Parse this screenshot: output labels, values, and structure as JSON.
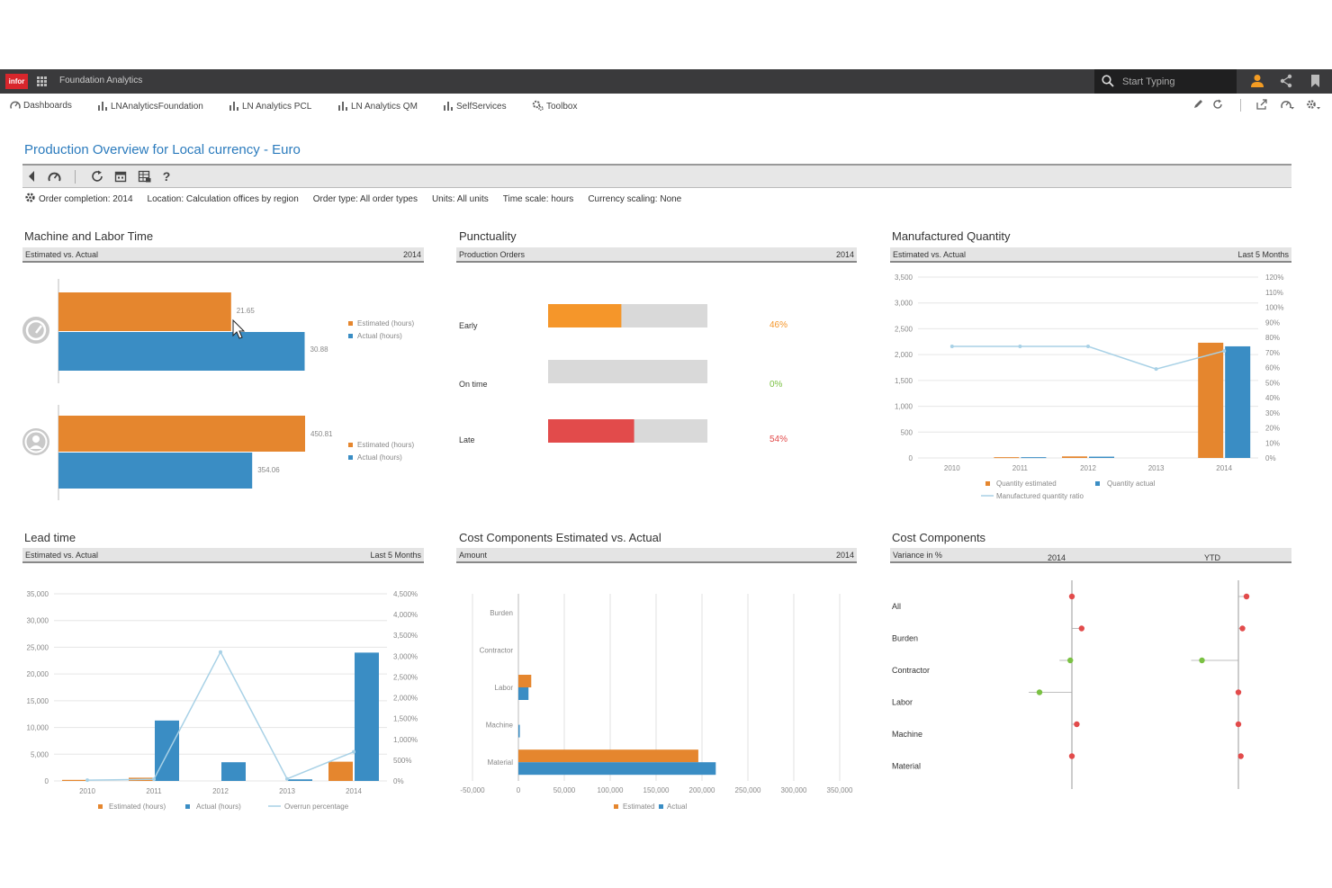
{
  "app": {
    "logo": "infor",
    "title": "Foundation Analytics",
    "search_placeholder": "Start Typing"
  },
  "nav": {
    "items": [
      "Dashboards",
      "LNAnalyticsFoundation",
      "LN Analytics PCL",
      "LN Analytics QM",
      "SelfServices",
      "Toolbox"
    ]
  },
  "page": {
    "title": "Production Overview for Local currency - Euro"
  },
  "filters": [
    "Order completion: 2014",
    "Location: Calculation offices by region",
    "Order type: All order types",
    "Units: All units",
    "Time scale: hours",
    "Currency scaling: None"
  ],
  "colors": {
    "orange": "#e5862e",
    "blue": "#3a8dc4",
    "red": "#e24b4b",
    "green": "#7ac143",
    "ratio": "#a8d1e6",
    "gray": "#d9d9d9",
    "accent": "#2b7bbd"
  },
  "panels": {
    "machine_labor": {
      "title": "Machine and Labor Time",
      "subtitle": "Estimated vs. Actual",
      "period": "2014"
    },
    "punctuality": {
      "title": "Punctuality",
      "subtitle": "Production Orders",
      "period": "2014"
    },
    "manufactured": {
      "title": "Manufactured Quantity",
      "subtitle": "Estimated vs. Actual",
      "period": "Last 5 Months"
    },
    "lead_time": {
      "title": "Lead time",
      "subtitle": "Estimated vs. Actual",
      "period": "Last 5 Months"
    },
    "cost_est_act": {
      "title": "Cost Components Estimated vs. Actual",
      "subtitle": "Amount",
      "period": "2014"
    },
    "cost_variance": {
      "title": "Cost Components",
      "subtitle": "Variance in %",
      "col1": "2014",
      "col2": "YTD"
    }
  },
  "chart_data": [
    {
      "id": "machine_labor",
      "type": "bar",
      "groups": [
        {
          "icon": "machine-gauge-icon",
          "series": [
            {
              "name": "Estimated (hours)",
              "value": 21.65,
              "label": "21.65"
            },
            {
              "name": "Actual (hours)",
              "value": 30.88,
              "label": "30.88"
            }
          ]
        },
        {
          "icon": "person-icon",
          "series": [
            {
              "name": "Estimated (hours)",
              "value": 450.81,
              "label": "450.81"
            },
            {
              "name": "Actual (hours)",
              "value": 354.06,
              "label": "354.06"
            }
          ]
        }
      ]
    },
    {
      "id": "punctuality",
      "type": "bar",
      "categories": [
        "Early",
        "On time",
        "Late"
      ],
      "values": [
        46,
        0,
        54
      ],
      "labels": [
        "46%",
        "0%",
        "54%"
      ],
      "colors": [
        "#f5962a",
        "#7ac143",
        "#e24b4b"
      ]
    },
    {
      "id": "manufactured",
      "type": "bar",
      "categories": [
        "2010",
        "2011",
        "2012",
        "2013",
        "2014"
      ],
      "series": [
        {
          "name": "Quantity estimated",
          "values": [
            0,
            15,
            30,
            0,
            2230
          ]
        },
        {
          "name": "Quantity actual",
          "values": [
            0,
            15,
            25,
            0,
            2160
          ]
        }
      ],
      "line": {
        "name": "Manufactured quantity ratio",
        "values": [
          74,
          74,
          74,
          59,
          71
        ]
      },
      "ylim": [
        0,
        3500
      ],
      "yticks": [
        "0",
        "500",
        "1,000",
        "1,500",
        "2,000",
        "2,500",
        "3,000",
        "3,500"
      ],
      "y2lim": [
        0,
        120
      ],
      "y2ticks": [
        "0%",
        "10%",
        "20%",
        "30%",
        "40%",
        "50%",
        "60%",
        "70%",
        "80%",
        "90%",
        "100%",
        "110%",
        "120%"
      ]
    },
    {
      "id": "lead_time",
      "type": "bar",
      "categories": [
        "2010",
        "2011",
        "2012",
        "2013",
        "2014"
      ],
      "series": [
        {
          "name": "Estimated (hours)",
          "values": [
            200,
            600,
            0,
            0,
            3600
          ]
        },
        {
          "name": "Actual (hours)",
          "values": [
            0,
            11300,
            3500,
            300,
            24000
          ]
        }
      ],
      "line": {
        "name": "Overrun percentage",
        "values": [
          20,
          40,
          3100,
          50,
          700
        ]
      },
      "ylim": [
        0,
        35000
      ],
      "yticks": [
        "0",
        "5,000",
        "10,000",
        "15,000",
        "20,000",
        "25,000",
        "30,000",
        "35,000"
      ],
      "y2lim": [
        0,
        4500
      ],
      "y2ticks": [
        "0%",
        "500%",
        "1,000%",
        "1,500%",
        "2,000%",
        "2,500%",
        "3,000%",
        "3,500%",
        "4,000%",
        "4,500%"
      ]
    },
    {
      "id": "cost_est_act",
      "type": "bar",
      "categories": [
        "Burden",
        "Contractor",
        "Labor",
        "Machine",
        "Material"
      ],
      "series": [
        {
          "name": "Estimated",
          "values": [
            0,
            0,
            14000,
            0,
            196000
          ]
        },
        {
          "name": "Actual",
          "values": [
            0,
            0,
            11000,
            1500,
            215000
          ]
        }
      ],
      "xlim": [
        -50000,
        350000
      ],
      "xticks": [
        "-50,000",
        "0",
        "50,000",
        "100,000",
        "150,000",
        "200,000",
        "250,000",
        "300,000",
        "350,000"
      ]
    },
    {
      "id": "cost_variance",
      "type": "scatter",
      "categories": [
        "All",
        "Burden",
        "Contractor",
        "Labor",
        "Machine",
        "Material"
      ],
      "series": [
        {
          "name": "2014",
          "values": [
            0,
            1.2,
            -0.2,
            -4,
            0.6,
            0
          ]
        },
        {
          "name": "YTD",
          "values": [
            1,
            0.5,
            -4.5,
            0,
            0,
            0.3
          ]
        }
      ]
    }
  ]
}
